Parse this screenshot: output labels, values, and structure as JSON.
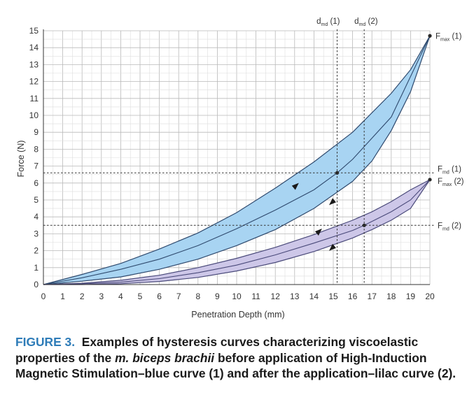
{
  "chart_data": {
    "type": "line",
    "xlabel": "Penetration Depth (mm)",
    "ylabel": "Force (N)",
    "xlim": [
      0,
      20
    ],
    "ylim": [
      0,
      15
    ],
    "xticks": [
      0,
      1,
      2,
      3,
      4,
      5,
      6,
      7,
      8,
      9,
      10,
      11,
      12,
      13,
      14,
      15,
      16,
      17,
      18,
      19,
      20
    ],
    "yticks": [
      0,
      1,
      2,
      3,
      4,
      5,
      6,
      7,
      8,
      9,
      10,
      11,
      12,
      13,
      14,
      15
    ],
    "grid": true,
    "series": [
      {
        "name": "blue curve (1)",
        "color": "#2f4a6e",
        "band_fill": "#a8d4f2",
        "loading": [
          [
            0,
            0
          ],
          [
            2,
            0.6
          ],
          [
            4,
            1.25
          ],
          [
            6,
            2.1
          ],
          [
            8,
            3.05
          ],
          [
            10,
            4.25
          ],
          [
            12,
            5.7
          ],
          [
            14,
            7.25
          ],
          [
            16,
            9.0
          ],
          [
            18,
            11.3
          ],
          [
            19,
            12.7
          ],
          [
            20,
            14.7
          ]
        ],
        "middle": [
          [
            0,
            0
          ],
          [
            2,
            0.4
          ],
          [
            4,
            0.9
          ],
          [
            6,
            1.5
          ],
          [
            8,
            2.3
          ],
          [
            10,
            3.3
          ],
          [
            12,
            4.4
          ],
          [
            14,
            5.6
          ],
          [
            15.2,
            6.6
          ],
          [
            16,
            7.4
          ],
          [
            18,
            9.9
          ],
          [
            20,
            14.7
          ]
        ],
        "unloading": [
          [
            0,
            0
          ],
          [
            2,
            0.2
          ],
          [
            4,
            0.45
          ],
          [
            6,
            0.9
          ],
          [
            8,
            1.5
          ],
          [
            10,
            2.3
          ],
          [
            12,
            3.25
          ],
          [
            14,
            4.5
          ],
          [
            16,
            6.1
          ],
          [
            17,
            7.3
          ],
          [
            18,
            9.1
          ],
          [
            19,
            11.4
          ],
          [
            20,
            14.7
          ]
        ]
      },
      {
        "name": "lilac curve (2)",
        "color": "#4a4a7a",
        "band_fill": "#cdc7e8",
        "loading": [
          [
            0,
            0
          ],
          [
            2,
            0.08
          ],
          [
            4,
            0.25
          ],
          [
            6,
            0.55
          ],
          [
            8,
            1.0
          ],
          [
            10,
            1.55
          ],
          [
            12,
            2.2
          ],
          [
            14,
            2.95
          ],
          [
            16,
            3.8
          ],
          [
            17,
            4.3
          ],
          [
            18,
            4.9
          ],
          [
            19,
            5.6
          ],
          [
            20,
            6.2
          ]
        ],
        "middle": [
          [
            0,
            0
          ],
          [
            2,
            0.04
          ],
          [
            4,
            0.14
          ],
          [
            6,
            0.35
          ],
          [
            8,
            0.7
          ],
          [
            10,
            1.15
          ],
          [
            12,
            1.75
          ],
          [
            14,
            2.45
          ],
          [
            16,
            3.2
          ],
          [
            16.6,
            3.5
          ],
          [
            18,
            4.3
          ],
          [
            19,
            5.0
          ],
          [
            20,
            6.2
          ]
        ],
        "unloading": [
          [
            0,
            0
          ],
          [
            2,
            0.0
          ],
          [
            4,
            0.05
          ],
          [
            6,
            0.18
          ],
          [
            8,
            0.42
          ],
          [
            10,
            0.8
          ],
          [
            12,
            1.3
          ],
          [
            14,
            1.95
          ],
          [
            16,
            2.75
          ],
          [
            17,
            3.25
          ],
          [
            18,
            3.8
          ],
          [
            19,
            4.5
          ],
          [
            20,
            6.2
          ]
        ]
      }
    ],
    "arrows": [
      {
        "series": 0,
        "at": [
          13,
          5.8
        ],
        "direction": "up"
      },
      {
        "series": 0,
        "at": [
          15,
          4.9
        ],
        "direction": "down"
      },
      {
        "series": 1,
        "at": [
          14.2,
          3.1
        ],
        "direction": "up"
      },
      {
        "series": 1,
        "at": [
          15,
          2.2
        ],
        "direction": "down"
      }
    ],
    "annotations": {
      "fmd1": {
        "x": 15.2,
        "y": 6.6,
        "main": "F",
        "sub": "md",
        "suffix": " (1)"
      },
      "fmd2": {
        "x": 16.6,
        "y": 3.5,
        "main": "F",
        "sub": "md",
        "suffix": " (2)"
      },
      "fmax1": {
        "x": 20,
        "y": 14.7,
        "main": "F",
        "sub": "max",
        "suffix": " (1)"
      },
      "fmax2": {
        "x": 20,
        "y": 6.2,
        "main": "F",
        "sub": "max",
        "suffix": " (2)"
      },
      "dmd1": {
        "x": 15.2,
        "main": "d",
        "sub": "md",
        "suffix": " (1)"
      },
      "dmd2": {
        "x": 16.6,
        "main": "d",
        "sub": "md",
        "suffix": " (2)"
      }
    }
  },
  "caption": {
    "figure_label": "FIGURE 3.",
    "text_before": "Examples of hysteresis curves characterizing viscoelastic properties of the",
    "italic": "m. biceps brachii",
    "text_after": "before application of High-Induction Magnetic Stimulation–blue curve (1) and after the application–lilac curve (2)."
  }
}
